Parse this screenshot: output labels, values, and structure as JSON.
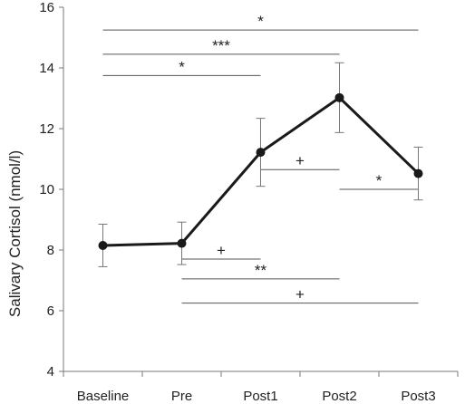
{
  "chart_data": {
    "type": "line",
    "categories": [
      "Baseline",
      "Pre",
      "Post1",
      "Post2",
      "Post3"
    ],
    "series": [
      {
        "values": [
          8.15,
          8.22,
          11.22,
          13.02,
          10.52
        ],
        "error": [
          0.7,
          0.7,
          1.12,
          1.15,
          0.87
        ]
      }
    ],
    "ylabel": "Salivary Cortisol (nmol/l)",
    "xlabel": "",
    "ylim": [
      4,
      16
    ],
    "yticks": [
      4,
      6,
      8,
      10,
      12,
      14,
      16
    ],
    "ytick_labels": [
      "4",
      "6",
      "8",
      "10",
      "12",
      "14",
      "16"
    ],
    "grid": false,
    "line_color": "#1a1a1a",
    "bracket_color": "#555555",
    "significance": [
      {
        "from": "Baseline",
        "to": "Post3",
        "y": 15.25,
        "label": "*"
      },
      {
        "from": "Baseline",
        "to": "Post2",
        "y": 14.45,
        "label": "***"
      },
      {
        "from": "Baseline",
        "to": "Post1",
        "y": 13.75,
        "label": "*"
      },
      {
        "from": "Post1",
        "to": "Post2",
        "y": 10.65,
        "label": "+"
      },
      {
        "from": "Post2",
        "to": "Post3",
        "y": 10.0,
        "label": "*"
      },
      {
        "from": "Pre",
        "to": "Post1",
        "y": 7.7,
        "label": "+"
      },
      {
        "from": "Pre",
        "to": "Post2",
        "y": 7.05,
        "label": "**"
      },
      {
        "from": "Pre",
        "to": "Post3",
        "y": 6.25,
        "label": "+"
      }
    ]
  }
}
